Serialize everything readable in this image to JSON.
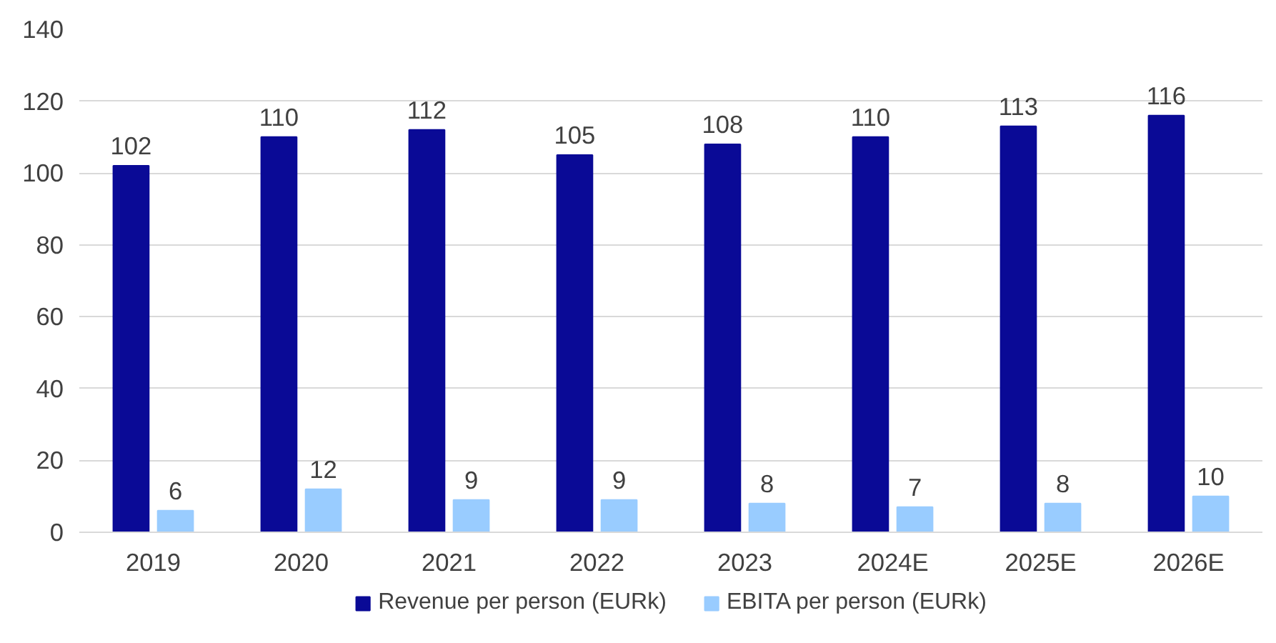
{
  "chart_data": {
    "type": "bar",
    "categories": [
      "2019",
      "2020",
      "2021",
      "2022",
      "2023",
      "2024E",
      "2025E",
      "2026E"
    ],
    "series": [
      {
        "name": "Revenue per person (EURk)",
        "color": "#0a0a96",
        "values": [
          102,
          110,
          112,
          105,
          108,
          110,
          113,
          116
        ]
      },
      {
        "name": "EBITA per person (EURk)",
        "color": "#99ccff",
        "values": [
          6,
          12,
          9,
          9,
          8,
          7,
          8,
          10
        ]
      }
    ],
    "ylim": [
      0,
      140
    ],
    "yticks": [
      0,
      20,
      40,
      60,
      80,
      100,
      120,
      140
    ],
    "grid": "y",
    "legend": "bottom",
    "data_labels": true
  }
}
